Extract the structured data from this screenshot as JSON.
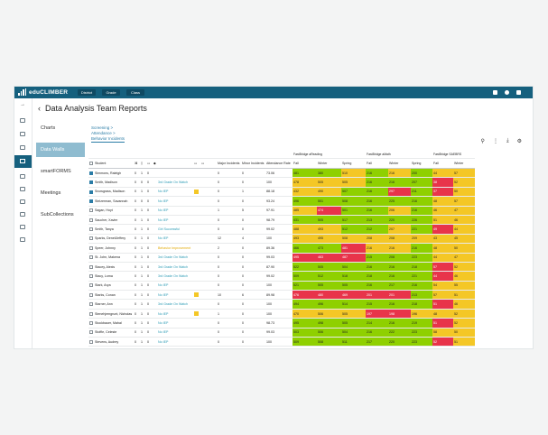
{
  "app": {
    "name": "eduCLIMBER",
    "nav": [
      "District",
      "Grade",
      "Class"
    ]
  },
  "page": {
    "title": "Data Analysis Team Reports",
    "back_icon": "chevron-left-icon"
  },
  "left_nav": [
    "Charts",
    "Data Walls",
    "smartFORMS",
    "Meetings",
    "SubCollections"
  ],
  "breadcrumb": {
    "line1": "Screening >",
    "line2": "Attendance >",
    "current": "Behavior Incidents"
  },
  "table": {
    "groups": {
      "reading": "FastBridge aReading",
      "math": "FastBridge aMath",
      "saebrs": "FastBridge SAEBRS"
    },
    "headers": {
      "student": "Student",
      "major": "Major Incidents",
      "minor": "Minor Incidents",
      "attendance": "Attendance Rate",
      "fall": "Fall",
      "winter": "Winter",
      "spring": "Spring"
    },
    "rows": [
      {
        "name": "Simmons, Raleigh",
        "c": [
          "0",
          "1",
          "0"
        ],
        "plan": "",
        "pc": "",
        "flag": false,
        "major": "0",
        "minor": "0",
        "att": "73.06",
        "r": [
          [
            "481",
            "g"
          ],
          [
            "380",
            "g"
          ],
          [
            "510",
            "y"
          ]
        ],
        "m": [
          [
            "216",
            "g"
          ],
          [
            "216",
            "y"
          ],
          [
            "200",
            "g"
          ]
        ],
        "s": [
          "44",
          "57"
        ],
        "checked": true
      },
      {
        "name": "Smith, Madison",
        "c": [
          "0",
          "0",
          "0"
        ],
        "plan": "3rd Grade On Watch",
        "pc": "",
        "flag": false,
        "major": "0",
        "minor": "0",
        "att": "100",
        "r": [
          [
            "478",
            "y"
          ],
          [
            "505",
            "y"
          ],
          [
            "505",
            "y"
          ]
        ],
        "m": [
          [
            "216",
            "g"
          ],
          [
            "216",
            "g"
          ],
          [
            "207",
            "g"
          ]
        ],
        "s": [
          "38",
          "52"
        ],
        "checked": true
      },
      {
        "name": "Snowgrass, Madison",
        "c": [
          "0",
          "1",
          "0"
        ],
        "plan": "No IEP",
        "pc": "",
        "flag": true,
        "major": "0",
        "minor": "1",
        "att": "88.18",
        "r": [
          [
            "432",
            "y"
          ],
          [
            "490",
            "y"
          ],
          [
            "507",
            "g"
          ]
        ],
        "m": [
          [
            "216",
            "g"
          ],
          [
            "297",
            "r"
          ],
          [
            "211",
            "g"
          ]
        ],
        "s": [
          "37",
          "50"
        ],
        "checked": true
      },
      {
        "name": "Stelzerman, Savannah",
        "c": [
          "0",
          "0",
          "0"
        ],
        "plan": "No IEP",
        "pc": "",
        "flag": false,
        "major": "0",
        "minor": "0",
        "att": "93.24",
        "r": [
          [
            "496",
            "g"
          ],
          [
            "501",
            "g"
          ],
          [
            "508",
            "g"
          ]
        ],
        "m": [
          [
            "216",
            "g"
          ],
          [
            "225",
            "g"
          ],
          [
            "216",
            "g"
          ]
        ],
        "s": [
          "48",
          "57"
        ],
        "checked": true
      },
      {
        "name": "Sagan, Hoyt",
        "c": [
          "0",
          "1",
          "0"
        ],
        "plan": "No IEP",
        "pc": "",
        "flag": false,
        "major": "1",
        "minor": "5",
        "att": "97.91",
        "r": [
          [
            "485",
            "y"
          ],
          [
            "474",
            "r"
          ],
          [
            "501",
            "g"
          ]
        ],
        "m": [
          [
            "216",
            "g"
          ],
          [
            "206",
            "y"
          ],
          [
            "216",
            "g"
          ]
        ],
        "s": [
          "46",
          "47"
        ],
        "checked": false
      },
      {
        "name": "Saucher, Xavier",
        "c": [
          "0",
          "1",
          "0"
        ],
        "plan": "No IEP",
        "pc": "",
        "flag": false,
        "major": "0",
        "minor": "0",
        "att": "98.79",
        "r": [
          [
            "431",
            "g"
          ],
          [
            "505",
            "g"
          ],
          [
            "517",
            "g"
          ]
        ],
        "m": [
          [
            "213",
            "g"
          ],
          [
            "220",
            "g"
          ],
          [
            "226",
            "g"
          ]
        ],
        "s": [
          "51",
          "46"
        ],
        "checked": false
      },
      {
        "name": "Smith, Tanya",
        "c": [
          "0",
          "1",
          "0"
        ],
        "plan": "Girl Successful",
        "pc": "",
        "flag": false,
        "major": "0",
        "minor": "0",
        "att": "99.02",
        "r": [
          [
            "488",
            "y"
          ],
          [
            "493",
            "y"
          ],
          [
            "512",
            "g"
          ]
        ],
        "m": [
          [
            "212",
            "g"
          ],
          [
            "207",
            "y"
          ],
          [
            "221",
            "g"
          ]
        ],
        "s": [
          "49",
          "44"
        ],
        "checked": false
      },
      {
        "name": "Sparks, DeneilJeffery",
        "c": [
          "0",
          "1",
          "0"
        ],
        "plan": "No IEP",
        "pc": "",
        "flag": false,
        "major": "12",
        "minor": "4",
        "att": "100",
        "r": [
          [
            "493",
            "y"
          ],
          [
            "495",
            "y"
          ],
          [
            "508",
            "y"
          ]
        ],
        "m": [
          [
            "208",
            "y"
          ],
          [
            "208",
            "y"
          ],
          [
            "209",
            "y"
          ]
        ],
        "s": [
          "43",
          "45"
        ],
        "checked": false
      },
      {
        "name": "Speer, Johnny",
        "c": [
          "0",
          "1",
          "0"
        ],
        "plan": "Behavior Improvement",
        "pc": "yel",
        "flag": false,
        "major": "2",
        "minor": "0",
        "att": "89.36",
        "r": [
          [
            "466",
            "g"
          ],
          [
            "473",
            "g"
          ],
          [
            "481",
            "r"
          ]
        ],
        "m": [
          [
            "216",
            "y"
          ],
          [
            "216",
            "y"
          ],
          [
            "216",
            "g"
          ]
        ],
        "s": [
          "48",
          "50"
        ],
        "checked": false
      },
      {
        "name": "St. John, Makena",
        "c": [
          "0",
          "1",
          "0"
        ],
        "plan": "3rd Grade On Watch",
        "pc": "",
        "flag": false,
        "major": "0",
        "minor": "0",
        "att": "99.03",
        "r": [
          [
            "495",
            "r"
          ],
          [
            "463",
            "r"
          ],
          [
            "487",
            "r"
          ]
        ],
        "m": [
          [
            "215",
            "g"
          ],
          [
            "208",
            "g"
          ],
          [
            "223",
            "g"
          ]
        ],
        "s": [
          "44",
          "47"
        ],
        "checked": false
      },
      {
        "name": "Stacey, Alexis",
        "c": [
          "0",
          "1",
          "0"
        ],
        "plan": "3rd Grade On Watch",
        "pc": "",
        "flag": false,
        "major": "0",
        "minor": "0",
        "att": "87.90",
        "r": [
          [
            "522",
            "g"
          ],
          [
            "505",
            "g"
          ],
          [
            "504",
            "g"
          ]
        ],
        "m": [
          [
            "216",
            "g"
          ],
          [
            "216",
            "g"
          ],
          [
            "218",
            "g"
          ]
        ],
        "s": [
          "57",
          "52"
        ],
        "checked": false
      },
      {
        "name": "Stacy, Lorna",
        "c": [
          "0",
          "1",
          "0"
        ],
        "plan": "3rd Grade On Watch",
        "pc": "",
        "flag": false,
        "major": "0",
        "minor": "0",
        "att": "99.02",
        "r": [
          [
            "509",
            "g"
          ],
          [
            "512",
            "g"
          ],
          [
            "518",
            "g"
          ]
        ],
        "m": [
          [
            "218",
            "g"
          ],
          [
            "216",
            "g"
          ],
          [
            "221",
            "g"
          ]
        ],
        "s": [
          "44",
          "46"
        ],
        "checked": false
      },
      {
        "name": "Stark, Arya",
        "c": [
          "0",
          "1",
          "0"
        ],
        "plan": "No IEP",
        "pc": "",
        "flag": false,
        "major": "0",
        "minor": "0",
        "att": "100",
        "r": [
          [
            "521",
            "g"
          ],
          [
            "505",
            "g"
          ],
          [
            "505",
            "g"
          ]
        ],
        "m": [
          [
            "216",
            "g"
          ],
          [
            "217",
            "g"
          ],
          [
            "216",
            "g"
          ]
        ],
        "s": [
          "54",
          "55"
        ],
        "checked": false
      },
      {
        "name": "Starks, Conan",
        "c": [
          "0",
          "1",
          "0"
        ],
        "plan": "No IEP",
        "pc": "",
        "flag": true,
        "major": "10",
        "minor": "6",
        "att": "89.98",
        "r": [
          [
            "476",
            "r"
          ],
          [
            "480",
            "r"
          ],
          [
            "469",
            "r"
          ]
        ],
        "m": [
          [
            "201",
            "r"
          ],
          [
            "201",
            "r"
          ],
          [
            "213",
            "g"
          ]
        ],
        "s": [
          "57",
          "51"
        ],
        "checked": false
      },
      {
        "name": "Starner, Ann",
        "c": [
          "0",
          "1",
          "0"
        ],
        "plan": "3rd Grade On Watch",
        "pc": "",
        "flag": false,
        "major": "0",
        "minor": "0",
        "att": "100",
        "r": [
          [
            "494",
            "g"
          ],
          [
            "496",
            "g"
          ],
          [
            "514",
            "g"
          ]
        ],
        "m": [
          [
            "215",
            "g"
          ],
          [
            "216",
            "g"
          ],
          [
            "218",
            "g"
          ]
        ],
        "s": [
          "51",
          "46"
        ],
        "checked": false
      },
      {
        "name": "Stenehjemgrunt, Nicholas",
        "c": [
          "0",
          "1",
          "0"
        ],
        "plan": "No IEP",
        "pc": "",
        "flag": true,
        "major": "1",
        "minor": "0",
        "att": "100",
        "r": [
          [
            "470",
            "y"
          ],
          [
            "506",
            "y"
          ],
          [
            "505",
            "y"
          ]
        ],
        "m": [
          [
            "197",
            "r"
          ],
          [
            "198",
            "r"
          ],
          [
            "196",
            "y"
          ]
        ],
        "s": [
          "48",
          "52"
        ],
        "checked": false
      },
      {
        "name": "Stockbauer, Mahal",
        "c": [
          "0",
          "1",
          "0"
        ],
        "plan": "No IEP",
        "pc": "",
        "flag": false,
        "major": "0",
        "minor": "0",
        "att": "98.73",
        "r": [
          [
            "495",
            "g"
          ],
          [
            "498",
            "g"
          ],
          [
            "505",
            "g"
          ]
        ],
        "m": [
          [
            "214",
            "g"
          ],
          [
            "216",
            "g"
          ],
          [
            "219",
            "g"
          ]
        ],
        "s": [
          "51",
          "52"
        ],
        "checked": false
      },
      {
        "name": "Stoffie, Celeste",
        "c": [
          "0",
          "1",
          "0"
        ],
        "plan": "No IEP",
        "pc": "",
        "flag": false,
        "major": "0",
        "minor": "0",
        "att": "99.03",
        "r": [
          [
            "503",
            "g"
          ],
          [
            "506",
            "g"
          ],
          [
            "504",
            "g"
          ]
        ],
        "m": [
          [
            "216",
            "g"
          ],
          [
            "222",
            "g"
          ],
          [
            "223",
            "g"
          ]
        ],
        "s": [
          "58",
          "50"
        ],
        "checked": false
      },
      {
        "name": "Stevens, Audrey",
        "c": [
          "0",
          "1",
          "0"
        ],
        "plan": "No IEP",
        "pc": "",
        "flag": false,
        "major": "0",
        "minor": "0",
        "att": "100",
        "r": [
          [
            "509",
            "g"
          ],
          [
            "508",
            "g"
          ],
          [
            "511",
            "g"
          ]
        ],
        "m": [
          [
            "217",
            "g"
          ],
          [
            "220",
            "g"
          ],
          [
            "223",
            "g"
          ]
        ],
        "s": [
          "52",
          "51"
        ],
        "checked": false
      }
    ]
  },
  "colors": {
    "topbar": "#15607e",
    "green": "#8fd000",
    "yellow": "#f4c726",
    "red": "#e8344a",
    "accent": "#2a7ca6"
  }
}
